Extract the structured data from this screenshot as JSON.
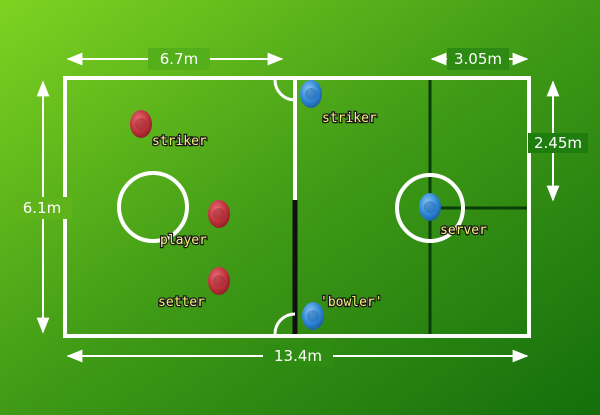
{
  "colors": {
    "field_light": "#7ed321",
    "field_dark": "#1c7a10",
    "lines": "#ffffff",
    "team_red": "#c0323c",
    "team_blue": "#2e86d6",
    "label_text": "#f4f178",
    "dark_line": "#0b3d08"
  },
  "dimensions": {
    "top_left": "6.7m",
    "top_right": "3.05m",
    "left_side": "6.1m",
    "right_side": "2.45m",
    "bottom": "13.4m"
  },
  "players": {
    "red": [
      {
        "label": "striker",
        "icon": "red-player-icon"
      },
      {
        "label": "player",
        "icon": "red-player-icon"
      },
      {
        "label": "setter",
        "icon": "red-player-icon"
      }
    ],
    "blue": [
      {
        "label": "striker",
        "icon": "blue-player-icon"
      },
      {
        "label": "server",
        "icon": "blue-player-icon"
      },
      {
        "label": "'bowler'",
        "icon": "blue-player-icon"
      }
    ]
  }
}
